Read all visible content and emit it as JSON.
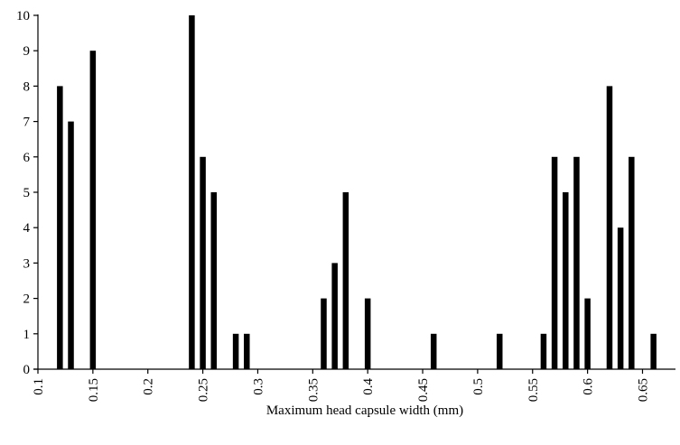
{
  "chart_data": {
    "type": "bar",
    "title": "",
    "xlabel": "Maximum head capsule width (mm)",
    "ylabel": "",
    "xlim": [
      0.1,
      0.68
    ],
    "ylim": [
      0,
      10
    ],
    "x_ticks": [
      "0.1",
      "0.15",
      "0.2",
      "0.25",
      "0.3",
      "0.35",
      "0.4",
      "0.45",
      "0.5",
      "0.55",
      "0.6",
      "0.65"
    ],
    "y_ticks": [
      "0",
      "1",
      "2",
      "3",
      "4",
      "5",
      "6",
      "7",
      "8",
      "9",
      "10"
    ],
    "grid": false,
    "bar_color": "#000000",
    "x": [
      0.12,
      0.13,
      0.15,
      0.24,
      0.25,
      0.26,
      0.28,
      0.29,
      0.36,
      0.37,
      0.38,
      0.4,
      0.46,
      0.52,
      0.56,
      0.57,
      0.58,
      0.59,
      0.6,
      0.62,
      0.63,
      0.64,
      0.66
    ],
    "values": [
      8,
      7,
      9,
      10,
      6,
      5,
      1,
      1,
      2,
      3,
      5,
      2,
      1,
      1,
      1,
      6,
      5,
      6,
      2,
      8,
      4,
      6,
      1
    ]
  }
}
